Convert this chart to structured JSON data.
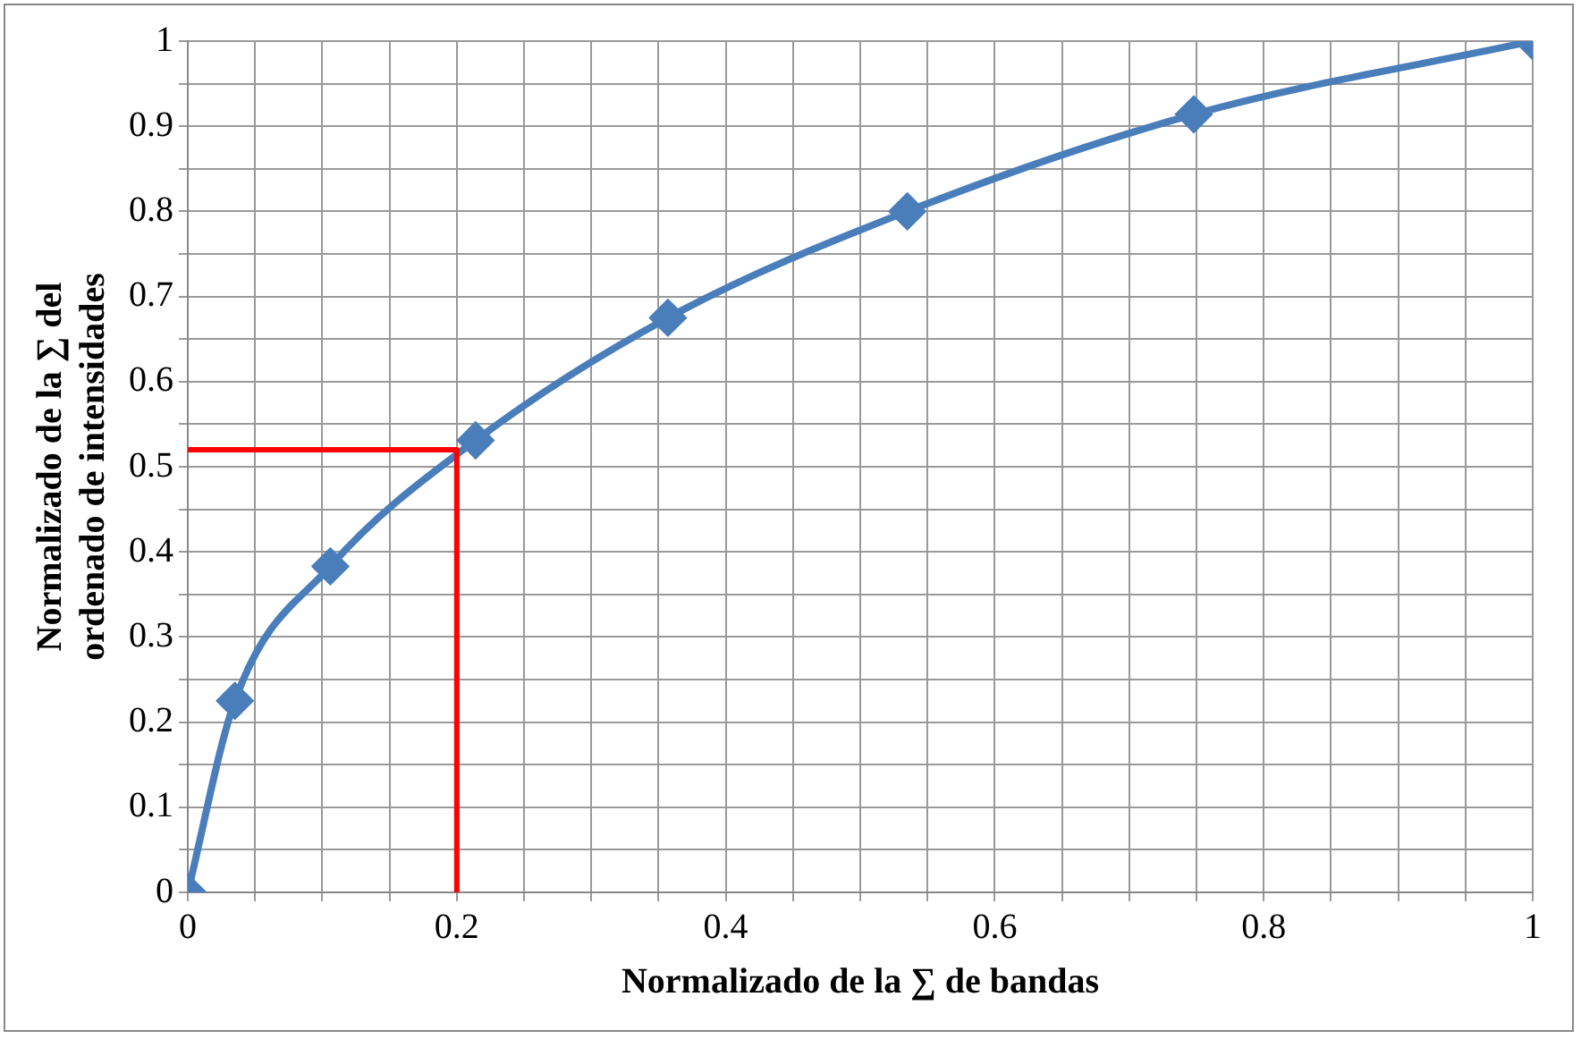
{
  "chart_data": {
    "type": "line",
    "xlabel": "Normalizado de la ∑ de bandas",
    "ylabel": "Normalizado de la ∑ del\nordenado de intensidades",
    "xlim": [
      0,
      1
    ],
    "ylim": [
      0,
      1
    ],
    "xticks": [
      0,
      {
        "value": 0.05,
        "label": null
      },
      {
        "value": 0.1,
        "label": null
      },
      {
        "value": 0.15,
        "label": null
      },
      0.2,
      {
        "value": 0.25,
        "label": null
      },
      {
        "value": 0.3,
        "label": null
      },
      {
        "value": 0.35,
        "label": null
      },
      0.4,
      {
        "value": 0.45,
        "label": null
      },
      {
        "value": 0.5,
        "label": null
      },
      {
        "value": 0.55,
        "label": null
      },
      0.6,
      {
        "value": 0.65,
        "label": null
      },
      {
        "value": 0.7,
        "label": null
      },
      {
        "value": 0.75,
        "label": null
      },
      0.8,
      {
        "value": 0.85,
        "label": null
      },
      {
        "value": 0.9,
        "label": null
      },
      {
        "value": 0.95,
        "label": null
      },
      1
    ],
    "yticks": [
      0,
      {
        "value": 0.05,
        "label": null
      },
      0.1,
      {
        "value": 0.15,
        "label": null
      },
      0.2,
      {
        "value": 0.25,
        "label": null
      },
      0.3,
      {
        "value": 0.35,
        "label": null
      },
      0.4,
      {
        "value": 0.45,
        "label": null
      },
      0.5,
      {
        "value": 0.55,
        "label": null
      },
      0.6,
      {
        "value": 0.65,
        "label": null
      },
      0.7,
      {
        "value": 0.75,
        "label": null
      },
      0.8,
      {
        "value": 0.85,
        "label": null
      },
      0.9,
      {
        "value": 0.95,
        "label": null
      },
      1
    ],
    "grid": true,
    "legend": false,
    "marker": "diamond",
    "line_style": "solid",
    "series": [
      {
        "color": "#4a7ebb",
        "x": [
          0,
          0.035,
          0.106,
          0.214,
          0.357,
          0.535,
          0.748,
          1
        ],
        "values": [
          0,
          0.225,
          0.383,
          0.531,
          0.675,
          0.8,
          0.914,
          1
        ]
      },
      {
        "color": "#ff0000",
        "marker": "none",
        "x": [
          0,
          0.2,
          0.2
        ],
        "values": [
          0.52,
          0.52,
          0
        ]
      }
    ]
  }
}
